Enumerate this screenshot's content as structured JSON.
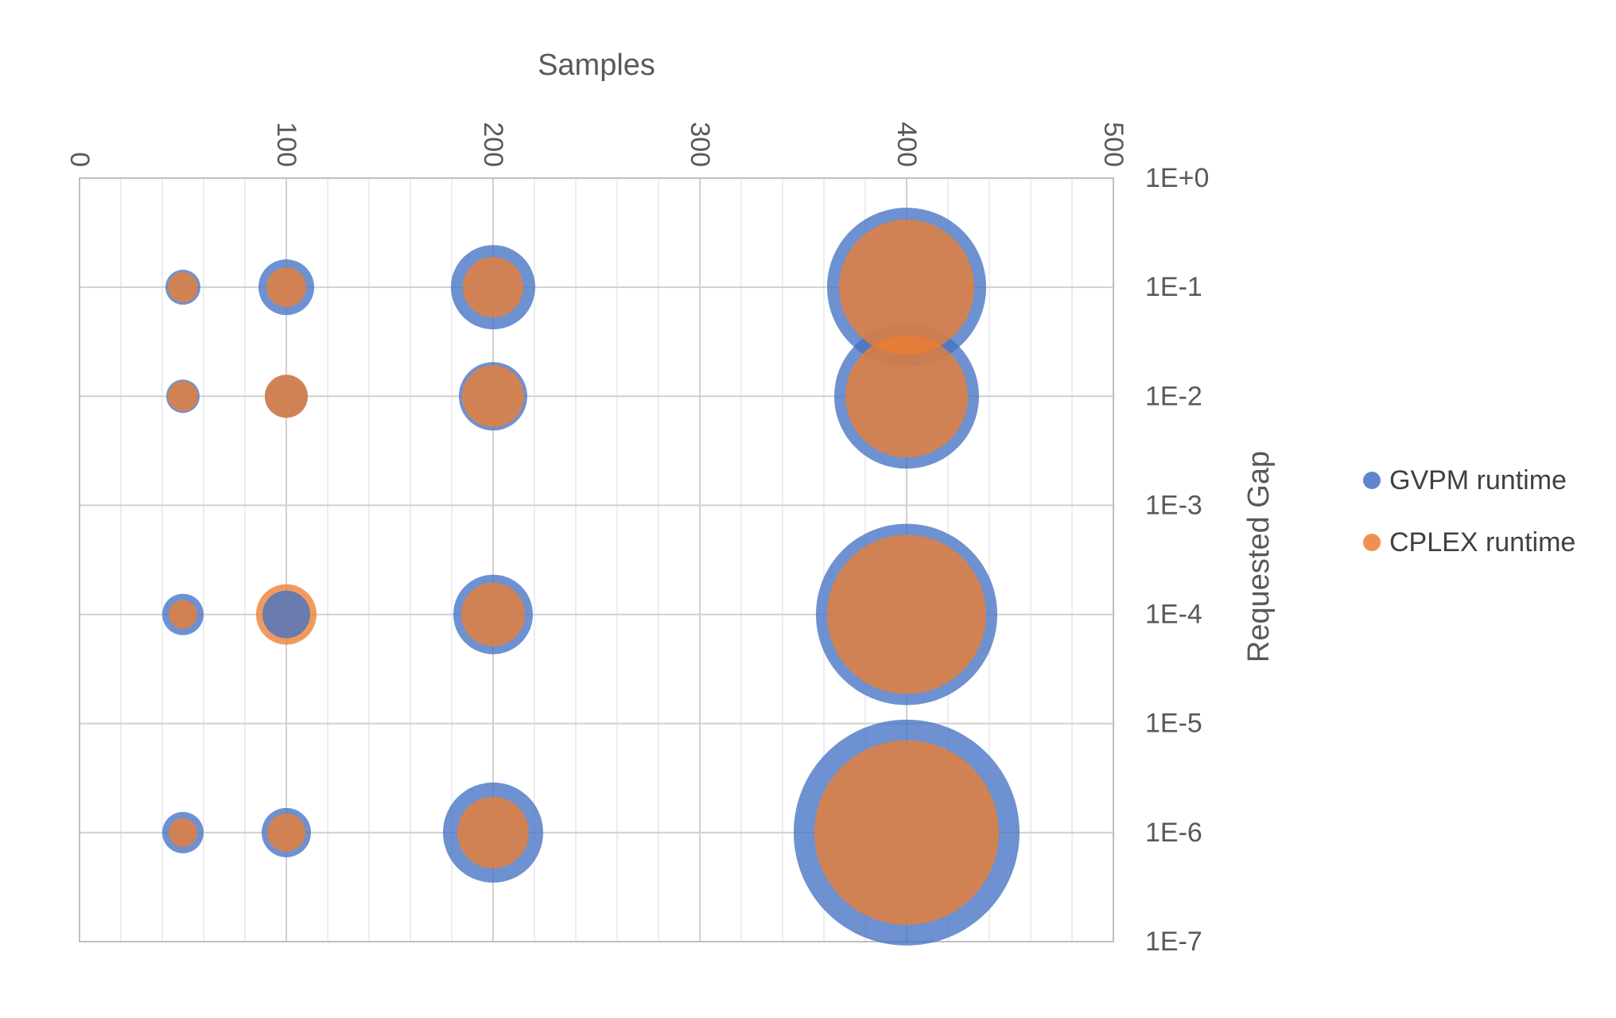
{
  "chart_data": {
    "type": "bubble",
    "xlabel": "Samples",
    "ylabel": "Requested Gap",
    "xlim": [
      0,
      500
    ],
    "x_major_ticks": [
      0,
      100,
      200,
      300,
      400,
      500
    ],
    "x_tick_labels": [
      "0",
      "100",
      "200",
      "300",
      "400",
      "500"
    ],
    "x_minor_step": 20,
    "y_scale": "log",
    "ylim": [
      1e-07,
      1
    ],
    "y_tick_values": [
      1,
      0.1,
      0.01,
      0.001,
      0.0001,
      1e-05,
      1e-06,
      1e-07
    ],
    "y_tick_labels": [
      "1E+0",
      "1E-1",
      "1E-2",
      "1E-3",
      "1E-4",
      "1E-5",
      "1E-6",
      "1E-7"
    ],
    "x_axis_position": "top",
    "y_axis_position": "right",
    "grid": true,
    "legend_position": "right",
    "series": [
      {
        "name": "GVPM runtime",
        "color": "#4472C4",
        "points": [
          {
            "x": 50,
            "y": 0.1,
            "size": 22
          },
          {
            "x": 100,
            "y": 0.1,
            "size": 35
          },
          {
            "x": 200,
            "y": 0.1,
            "size": 53
          },
          {
            "x": 400,
            "y": 0.1,
            "size": 100
          },
          {
            "x": 50,
            "y": 0.01,
            "size": 21
          },
          {
            "x": 100,
            "y": 0.01,
            "size": 27
          },
          {
            "x": 200,
            "y": 0.01,
            "size": 43
          },
          {
            "x": 400,
            "y": 0.01,
            "size": 91
          },
          {
            "x": 50,
            "y": 0.0001,
            "size": 26
          },
          {
            "x": 100,
            "y": 0.0001,
            "size": 30
          },
          {
            "x": 200,
            "y": 0.0001,
            "size": 50
          },
          {
            "x": 400,
            "y": 0.0001,
            "size": 114
          },
          {
            "x": 50,
            "y": 1e-06,
            "size": 26
          },
          {
            "x": 100,
            "y": 1e-06,
            "size": 31
          },
          {
            "x": 200,
            "y": 1e-06,
            "size": 63
          },
          {
            "x": 400,
            "y": 1e-06,
            "size": 142
          }
        ]
      },
      {
        "name": "CPLEX runtime",
        "color": "#ED7D31",
        "points": [
          {
            "x": 50,
            "y": 0.1,
            "size": 19
          },
          {
            "x": 100,
            "y": 0.1,
            "size": 25
          },
          {
            "x": 200,
            "y": 0.1,
            "size": 38
          },
          {
            "x": 400,
            "y": 0.1,
            "size": 85
          },
          {
            "x": 50,
            "y": 0.01,
            "size": 19
          },
          {
            "x": 100,
            "y": 0.01,
            "size": 27
          },
          {
            "x": 200,
            "y": 0.01,
            "size": 39
          },
          {
            "x": 400,
            "y": 0.01,
            "size": 77
          },
          {
            "x": 50,
            "y": 0.0001,
            "size": 18
          },
          {
            "x": 100,
            "y": 0.0001,
            "size": 38
          },
          {
            "x": 200,
            "y": 0.0001,
            "size": 40
          },
          {
            "x": 400,
            "y": 0.0001,
            "size": 100
          },
          {
            "x": 50,
            "y": 1e-06,
            "size": 18
          },
          {
            "x": 100,
            "y": 1e-06,
            "size": 24
          },
          {
            "x": 200,
            "y": 1e-06,
            "size": 45
          },
          {
            "x": 400,
            "y": 1e-06,
            "size": 116
          }
        ]
      }
    ]
  }
}
